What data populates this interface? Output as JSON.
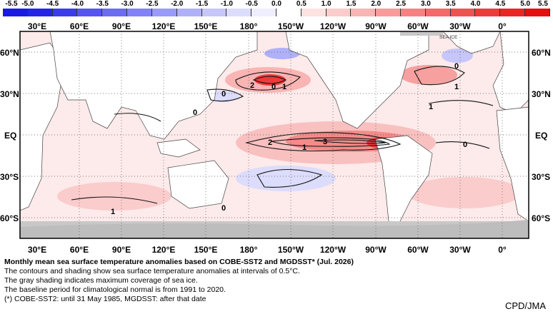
{
  "colorbar": {
    "ticks": [
      "-5.5",
      "-5.0",
      "-4.5",
      "-4.0",
      "-3.5",
      "-3.0",
      "-2.5",
      "-2.0",
      "-1.5",
      "-1.0",
      "-0.5",
      "0.0",
      "0.5",
      "1.0",
      "1.5",
      "2.0",
      "2.5",
      "3.0",
      "3.5",
      "4.0",
      "4.5",
      "5.0",
      "5.5"
    ],
    "colors": [
      "#1a1ae6",
      "#2424ea",
      "#3a3aef",
      "#5454f2",
      "#6b6bf4",
      "#8282f5",
      "#9a9af7",
      "#b0b0f9",
      "#c6c6fb",
      "#dcdcfc",
      "#eeeefe",
      "#ffffff",
      "#fde2e2",
      "#fbcccc",
      "#f9b4b4",
      "#f79b9b",
      "#f58282",
      "#f36a6a",
      "#f05252",
      "#ee3a3a",
      "#ec2424",
      "#e60e0e"
    ]
  },
  "map": {
    "top_lon_labels": [
      "30°E",
      "60°E",
      "90°E",
      "120°E",
      "150°E",
      "180°",
      "150°W",
      "120°W",
      "90°W",
      "60°W",
      "30°W",
      "0°"
    ],
    "bottom_lon_labels": [
      "30°E",
      "60°E",
      "90°E",
      "120°E",
      "150°E",
      "180°",
      "150°W",
      "120°W",
      "90°W",
      "60°W",
      "30°W",
      "0°"
    ],
    "lat_labels": [
      "60°N",
      "30°N",
      "EQ",
      "30°S",
      "60°S"
    ],
    "sea_ice_label": "SEA ICE",
    "contour_labels": [
      {
        "text": "2"
      },
      {
        "text": "0"
      },
      {
        "text": "1"
      },
      {
        "text": "0"
      },
      {
        "text": "0"
      },
      {
        "text": "2"
      },
      {
        "text": "1"
      },
      {
        "text": "3"
      },
      {
        "text": "0"
      },
      {
        "text": "1"
      },
      {
        "text": "1"
      },
      {
        "text": "0"
      },
      {
        "text": "1"
      },
      {
        "text": "0"
      }
    ]
  },
  "caption": {
    "title": "Monthly mean sea surface temperature anomalies based on COBE-SST2 and MGDSST* (Jul. 2026)",
    "line1": "The contours and shading show sea surface temperature anomalies at intervals of 0.5°C.",
    "line2": "The gray shading indicates maximum coverage of sea ice.",
    "line3": "The baseline period for climatological normal is from 1991 to 2020.",
    "line4": "(*) COBE-SST2: until 31 May 1985, MGDSST: after that date"
  },
  "credit": "CPD/JMA"
}
